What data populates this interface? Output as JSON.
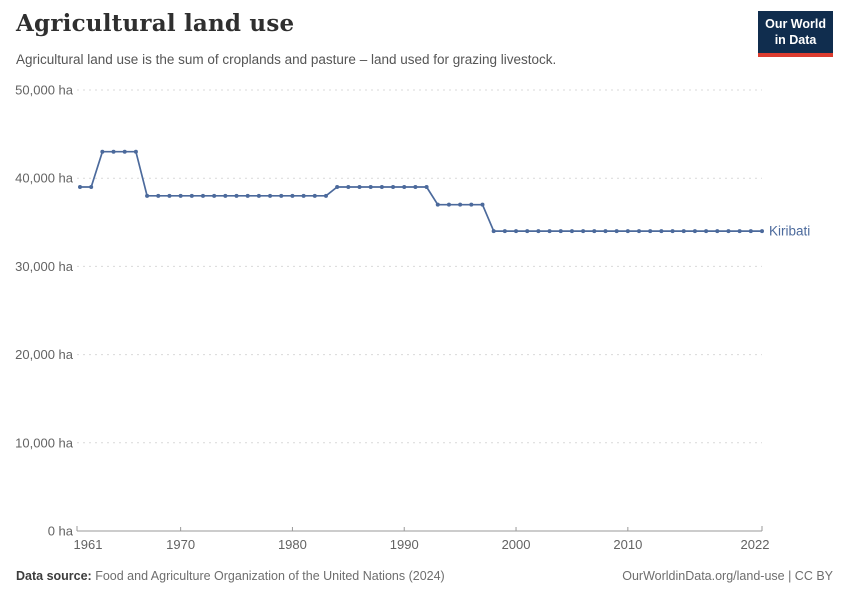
{
  "header": {
    "title": "Agricultural land use",
    "subtitle": "Agricultural land use is the sum of croplands and pasture – land used for grazing livestock.",
    "logo_line1": "Our World",
    "logo_line2": "in Data"
  },
  "chart_data": {
    "type": "line",
    "title": "Agricultural land use",
    "unit": "ha",
    "grid": true,
    "legend_position": "end-of-line",
    "xlabel": "",
    "ylabel": "",
    "ylim": [
      0,
      50000
    ],
    "yticks": [
      0,
      10000,
      20000,
      30000,
      40000,
      50000
    ],
    "ytick_labels": [
      "0 ha",
      "10,000 ha",
      "20,000 ha",
      "30,000 ha",
      "40,000 ha",
      "50,000 ha"
    ],
    "xticks": [
      1961,
      1970,
      1980,
      1990,
      2000,
      2010,
      2022
    ],
    "x": [
      1961,
      1962,
      1963,
      1964,
      1965,
      1966,
      1967,
      1968,
      1969,
      1970,
      1971,
      1972,
      1973,
      1974,
      1975,
      1976,
      1977,
      1978,
      1979,
      1980,
      1981,
      1982,
      1983,
      1984,
      1985,
      1986,
      1987,
      1988,
      1989,
      1990,
      1991,
      1992,
      1993,
      1994,
      1995,
      1996,
      1997,
      1998,
      1999,
      2000,
      2001,
      2002,
      2003,
      2004,
      2005,
      2006,
      2007,
      2008,
      2009,
      2010,
      2011,
      2012,
      2013,
      2014,
      2015,
      2016,
      2017,
      2018,
      2019,
      2020,
      2021,
      2022
    ],
    "series": [
      {
        "name": "Kiribati",
        "color": "#4c6a9c",
        "values": [
          39000,
          39000,
          43000,
          43000,
          43000,
          43000,
          38000,
          38000,
          38000,
          38000,
          38000,
          38000,
          38000,
          38000,
          38000,
          38000,
          38000,
          38000,
          38000,
          38000,
          38000,
          38000,
          38000,
          39000,
          39000,
          39000,
          39000,
          39000,
          39000,
          39000,
          39000,
          39000,
          37000,
          37000,
          37000,
          37000,
          37000,
          34000,
          34000,
          34000,
          34000,
          34000,
          34000,
          34000,
          34000,
          34000,
          34000,
          34000,
          34000,
          34000,
          34000,
          34000,
          34000,
          34000,
          34000,
          34000,
          34000,
          34000,
          34000,
          34000,
          34000,
          34000
        ]
      }
    ]
  },
  "footer": {
    "source_label": "Data source:",
    "source_text": " Food and Agriculture Organization of the United Nations (2024)",
    "link_text": "OurWorldinData.org/land-use | CC BY"
  },
  "colors": {
    "line": "#4c6a9c",
    "gridline": "#d9d9d9",
    "axis": "#999999",
    "tick_label": "#636363",
    "logo_bg": "#102d4e",
    "logo_bar": "#dc3c2f"
  }
}
